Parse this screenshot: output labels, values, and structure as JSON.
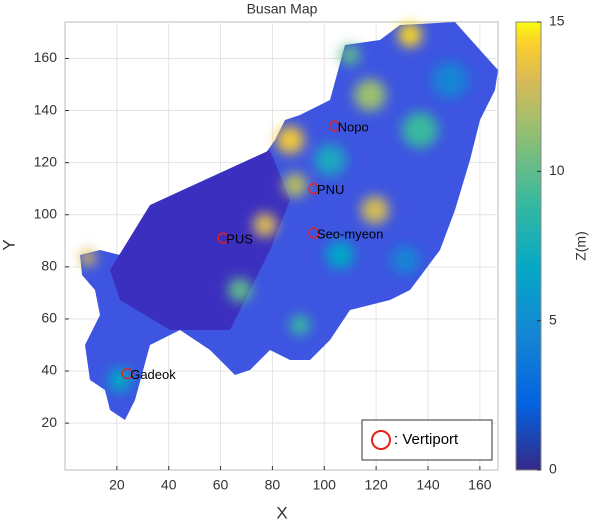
{
  "chart_data": {
    "type": "scatter",
    "title": "Busan Map",
    "x_label": "X",
    "y_label": "Y",
    "xlim": [
      0,
      167
    ],
    "ylim": [
      2,
      174
    ],
    "xticks": [
      20,
      40,
      60,
      80,
      100,
      120,
      140,
      160
    ],
    "yticks": [
      20,
      40,
      60,
      80,
      100,
      120,
      140,
      160
    ],
    "grid": true,
    "legend_position": "lower right",
    "series": [
      {
        "name": ": Vertiport",
        "color": "#e8201a",
        "x": [
          104,
          96,
          61,
          96,
          24
        ],
        "y": [
          134,
          110,
          91,
          93,
          39
        ],
        "labels": [
          "Nopo",
          "PNU",
          "PUS",
          "Seo-myeon",
          "Gadeok"
        ]
      }
    ],
    "colorbar": {
      "label": "Z(m)",
      "lim": [
        0,
        15
      ],
      "ticks": [
        0,
        5,
        10,
        15
      ]
    }
  }
}
